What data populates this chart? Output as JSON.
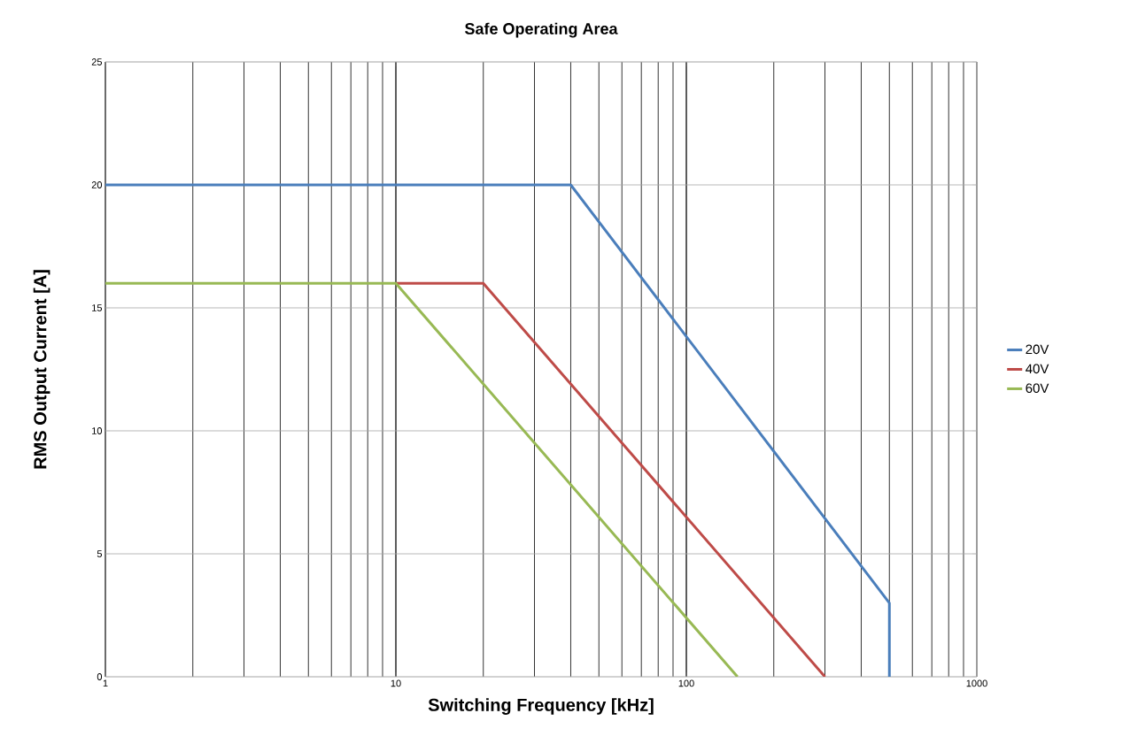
{
  "chart_data": {
    "type": "line",
    "title": "Safe Operating Area",
    "xlabel": "Switching Frequency [kHz]",
    "ylabel": "RMS Output Current [A]",
    "series": [
      {
        "name": "20V",
        "color": "#4a7ebb",
        "x": [
          1,
          40,
          500,
          500
        ],
        "values": [
          20,
          20,
          3,
          0
        ]
      },
      {
        "name": "40V",
        "color": "#be4b48",
        "x": [
          10,
          20,
          300
        ],
        "values": [
          16,
          16,
          0
        ]
      },
      {
        "name": "60V",
        "color": "#98b954",
        "x": [
          1,
          10,
          150
        ],
        "values": [
          16,
          16,
          0
        ]
      }
    ],
    "log": "x",
    "xlim": [
      1,
      1000
    ],
    "xticks": [
      1,
      10,
      100,
      1000
    ],
    "ylim": [
      0,
      25
    ],
    "yticks": [
      0,
      5,
      10,
      15,
      20,
      25
    ],
    "grid": true,
    "legend": "right",
    "marker": "none",
    "line_style": "solid"
  }
}
